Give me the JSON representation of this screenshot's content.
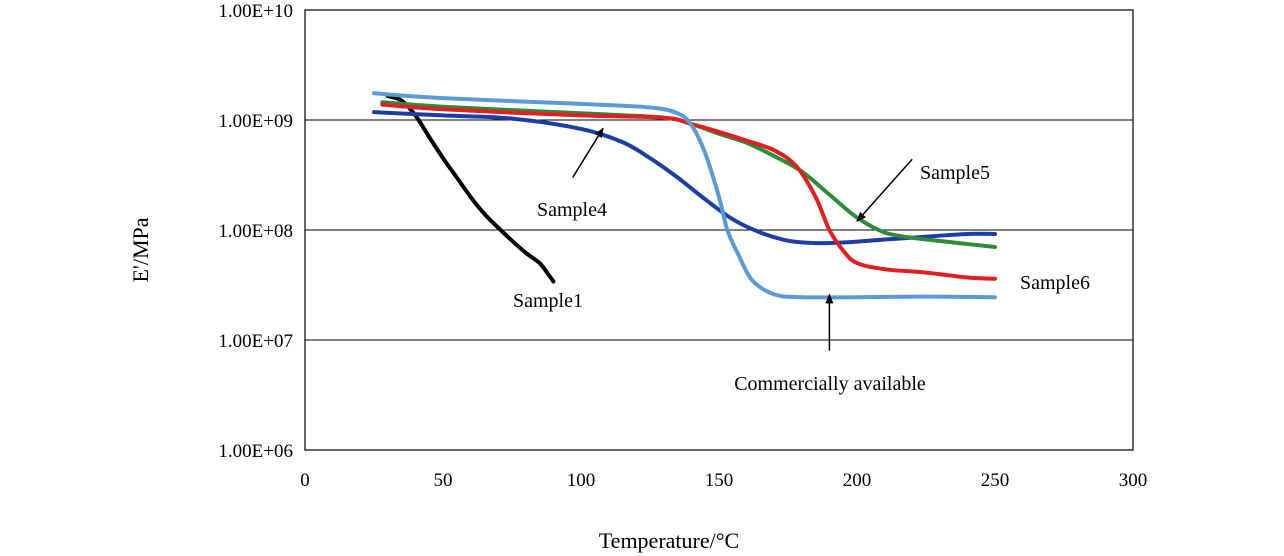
{
  "chart_data": {
    "type": "line",
    "title": "",
    "xlabel": "Temperature/°C",
    "ylabel": "E'/MPa",
    "xlim": [
      0,
      300
    ],
    "ylim": [
      1000000,
      10000000000
    ],
    "yscale": "log",
    "x_ticks": [
      0,
      50,
      100,
      150,
      200,
      250,
      300
    ],
    "x_tick_labels": [
      "0",
      "50",
      "100",
      "150",
      "200",
      "250",
      "300"
    ],
    "y_ticks": [
      1000000,
      10000000,
      100000000,
      1000000000,
      10000000000
    ],
    "y_tick_labels": [
      "1.00E+06",
      "1.00E+07",
      "1.00E+08",
      "1.00E+09",
      "1.00E+10"
    ],
    "grid": "horizontal",
    "legend": "none",
    "series": [
      {
        "name": "Sample1",
        "color": "#000000",
        "points": [
          [
            30,
            1650000000
          ],
          [
            35,
            1500000000
          ],
          [
            40,
            1100000000
          ],
          [
            45,
            700000000
          ],
          [
            50,
            450000000
          ],
          [
            55,
            300000000
          ],
          [
            60,
            200000000
          ],
          [
            65,
            140000000
          ],
          [
            70,
            105000000
          ],
          [
            75,
            80000000
          ],
          [
            80,
            62000000
          ],
          [
            85,
            50000000
          ],
          [
            88,
            40000000
          ],
          [
            90,
            34000000
          ]
        ]
      },
      {
        "name": "Sample4",
        "color": "#1c3da6",
        "points": [
          [
            25,
            1180000000
          ],
          [
            50,
            1100000000
          ],
          [
            75,
            1030000000
          ],
          [
            100,
            830000000
          ],
          [
            115,
            630000000
          ],
          [
            125,
            450000000
          ],
          [
            135,
            300000000
          ],
          [
            145,
            190000000
          ],
          [
            155,
            125000000
          ],
          [
            165,
            95000000
          ],
          [
            175,
            80000000
          ],
          [
            185,
            76000000
          ],
          [
            195,
            77000000
          ],
          [
            210,
            82000000
          ],
          [
            225,
            87000000
          ],
          [
            240,
            92000000
          ],
          [
            250,
            92000000
          ]
        ]
      },
      {
        "name": "Sample5",
        "color": "#2e8b3a",
        "points": [
          [
            28,
            1450000000
          ],
          [
            50,
            1320000000
          ],
          [
            100,
            1150000000
          ],
          [
            130,
            1050000000
          ],
          [
            140,
            920000000
          ],
          [
            150,
            750000000
          ],
          [
            160,
            620000000
          ],
          [
            170,
            470000000
          ],
          [
            180,
            340000000
          ],
          [
            190,
            210000000
          ],
          [
            200,
            130000000
          ],
          [
            210,
            95000000
          ],
          [
            220,
            85000000
          ],
          [
            235,
            77000000
          ],
          [
            250,
            70000000
          ]
        ]
      },
      {
        "name": "Sample6",
        "color": "#e02020",
        "points": [
          [
            28,
            1380000000
          ],
          [
            50,
            1250000000
          ],
          [
            100,
            1100000000
          ],
          [
            130,
            1050000000
          ],
          [
            140,
            920000000
          ],
          [
            150,
            780000000
          ],
          [
            160,
            650000000
          ],
          [
            170,
            530000000
          ],
          [
            178,
            380000000
          ],
          [
            185,
            200000000
          ],
          [
            190,
            100000000
          ],
          [
            195,
            65000000
          ],
          [
            200,
            50000000
          ],
          [
            210,
            44000000
          ],
          [
            225,
            41000000
          ],
          [
            240,
            37000000
          ],
          [
            250,
            36000000
          ]
        ]
      },
      {
        "name": "Commercially available",
        "color": "#5b9bd5",
        "points": [
          [
            25,
            1750000000
          ],
          [
            50,
            1580000000
          ],
          [
            100,
            1400000000
          ],
          [
            125,
            1300000000
          ],
          [
            135,
            1150000000
          ],
          [
            140,
            900000000
          ],
          [
            145,
            500000000
          ],
          [
            150,
            200000000
          ],
          [
            153,
            100000000
          ],
          [
            157,
            60000000
          ],
          [
            162,
            35000000
          ],
          [
            170,
            26000000
          ],
          [
            180,
            24500000
          ],
          [
            200,
            24500000
          ],
          [
            225,
            24800000
          ],
          [
            250,
            24500000
          ]
        ]
      }
    ],
    "annotations": [
      {
        "text": "Sample1",
        "series": "Sample1"
      },
      {
        "text": "Sample4",
        "series": "Sample4",
        "arrow": {
          "from": [
            97,
            300000000
          ],
          "to": [
            108,
            840000000
          ]
        }
      },
      {
        "text": "Sample5",
        "series": "Sample5",
        "arrow": {
          "from": [
            220,
            440000000
          ],
          "to": [
            200,
            120000000
          ]
        }
      },
      {
        "text": "Sample6",
        "series": "Sample6"
      },
      {
        "text": "Commercially available",
        "series": "Commercially available",
        "arrow": {
          "from": [
            190,
            8000000
          ],
          "to": [
            190,
            26000000
          ]
        }
      }
    ]
  }
}
